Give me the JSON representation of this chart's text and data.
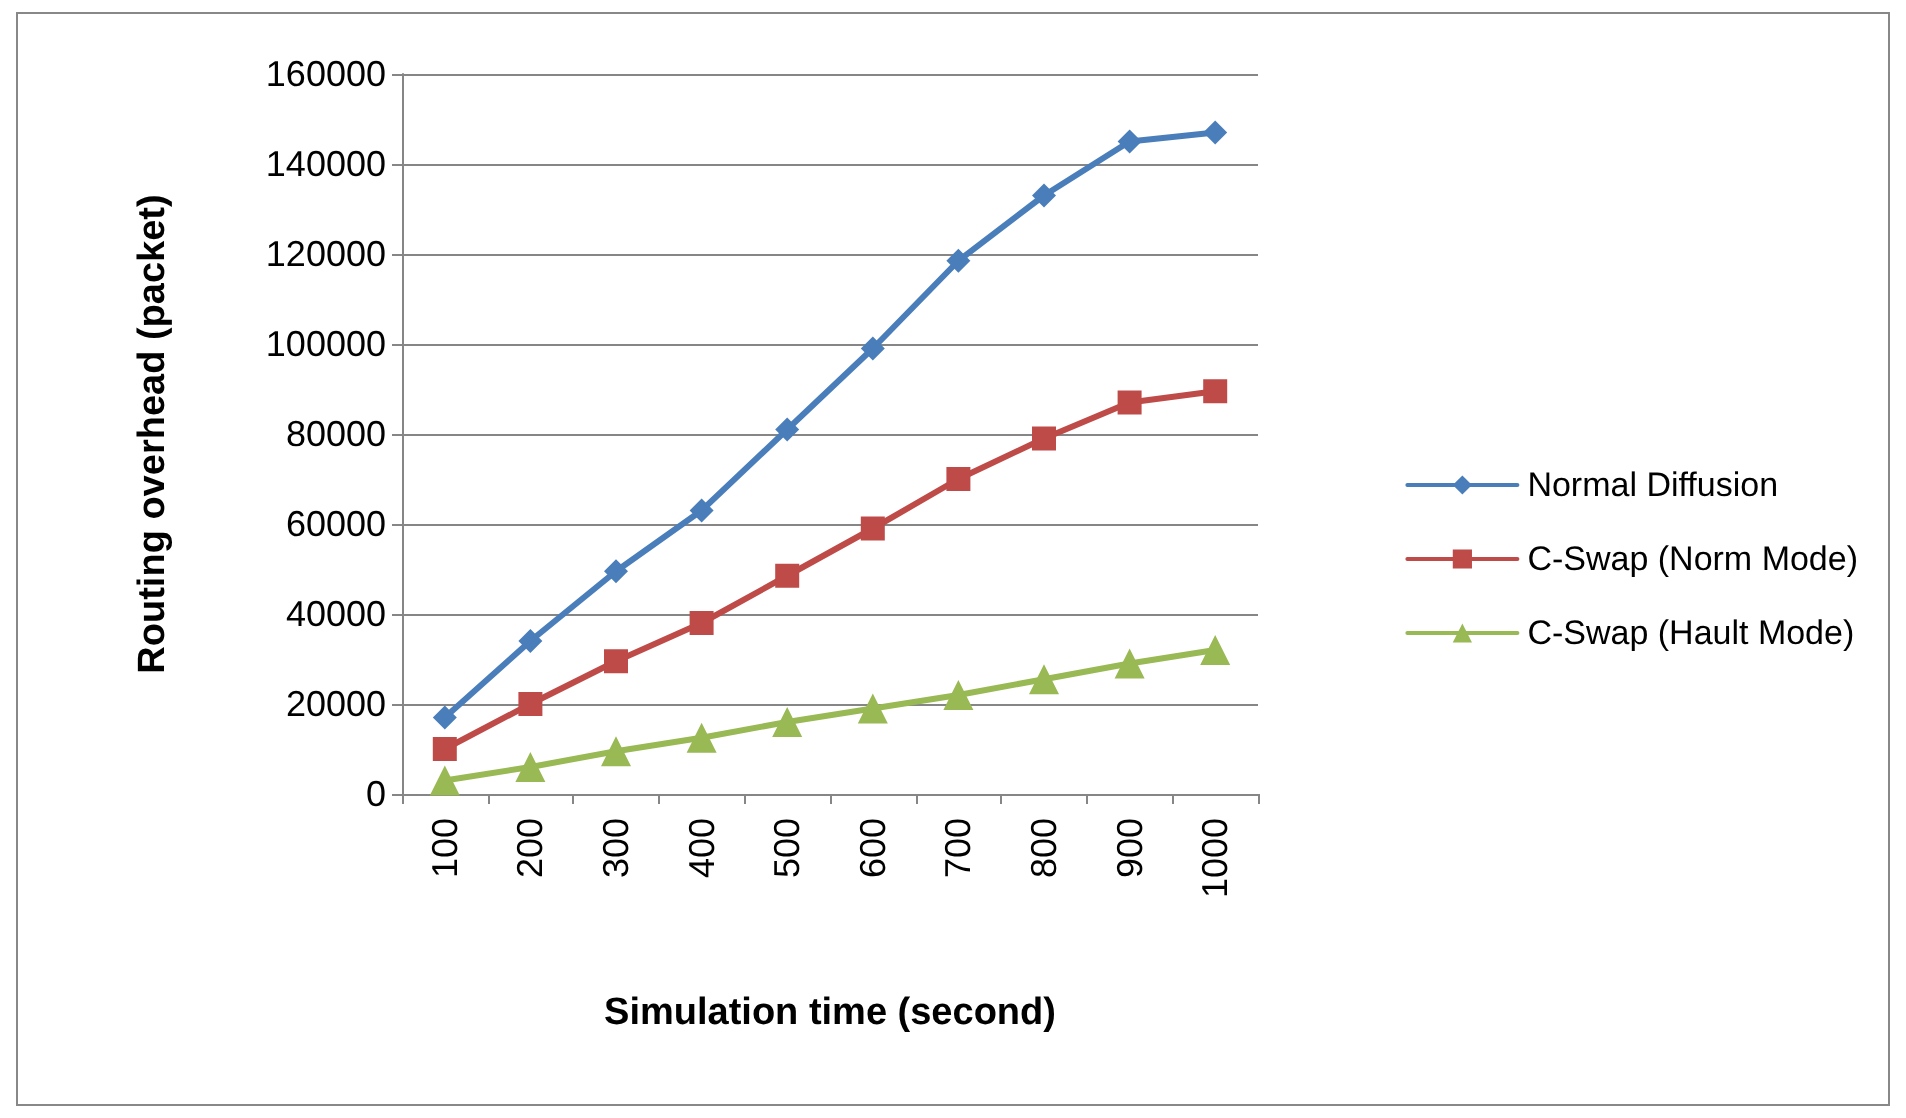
{
  "chart_data": {
    "type": "line",
    "xlabel": "Simulation time (second)",
    "ylabel": "Routing overhead (packet)",
    "categories": [
      "100",
      "200",
      "300",
      "400",
      "500",
      "600",
      "700",
      "800",
      "900",
      "1000"
    ],
    "series": [
      {
        "name": "Normal Diffusion",
        "color": "#4a7ebb",
        "marker": "diamond",
        "values": [
          17000,
          34000,
          49500,
          63000,
          81000,
          99000,
          118500,
          133000,
          145000,
          147000
        ]
      },
      {
        "name": "C-Swap (Norm Mode)",
        "color": "#be4b48",
        "marker": "square",
        "values": [
          10000,
          20000,
          29500,
          38000,
          48500,
          59000,
          70000,
          79000,
          87000,
          89500
        ]
      },
      {
        "name": "C-Swap (Hault Mode)",
        "color": "#98b954",
        "marker": "triangle",
        "values": [
          3000,
          6000,
          9500,
          12500,
          16000,
          19000,
          22000,
          25500,
          29000,
          32000
        ]
      }
    ],
    "ylim": [
      0,
      160000
    ],
    "yticks": [
      0,
      20000,
      40000,
      60000,
      80000,
      100000,
      120000,
      140000,
      160000
    ],
    "grid": "y",
    "legend": "right",
    "line_style": "solid"
  }
}
